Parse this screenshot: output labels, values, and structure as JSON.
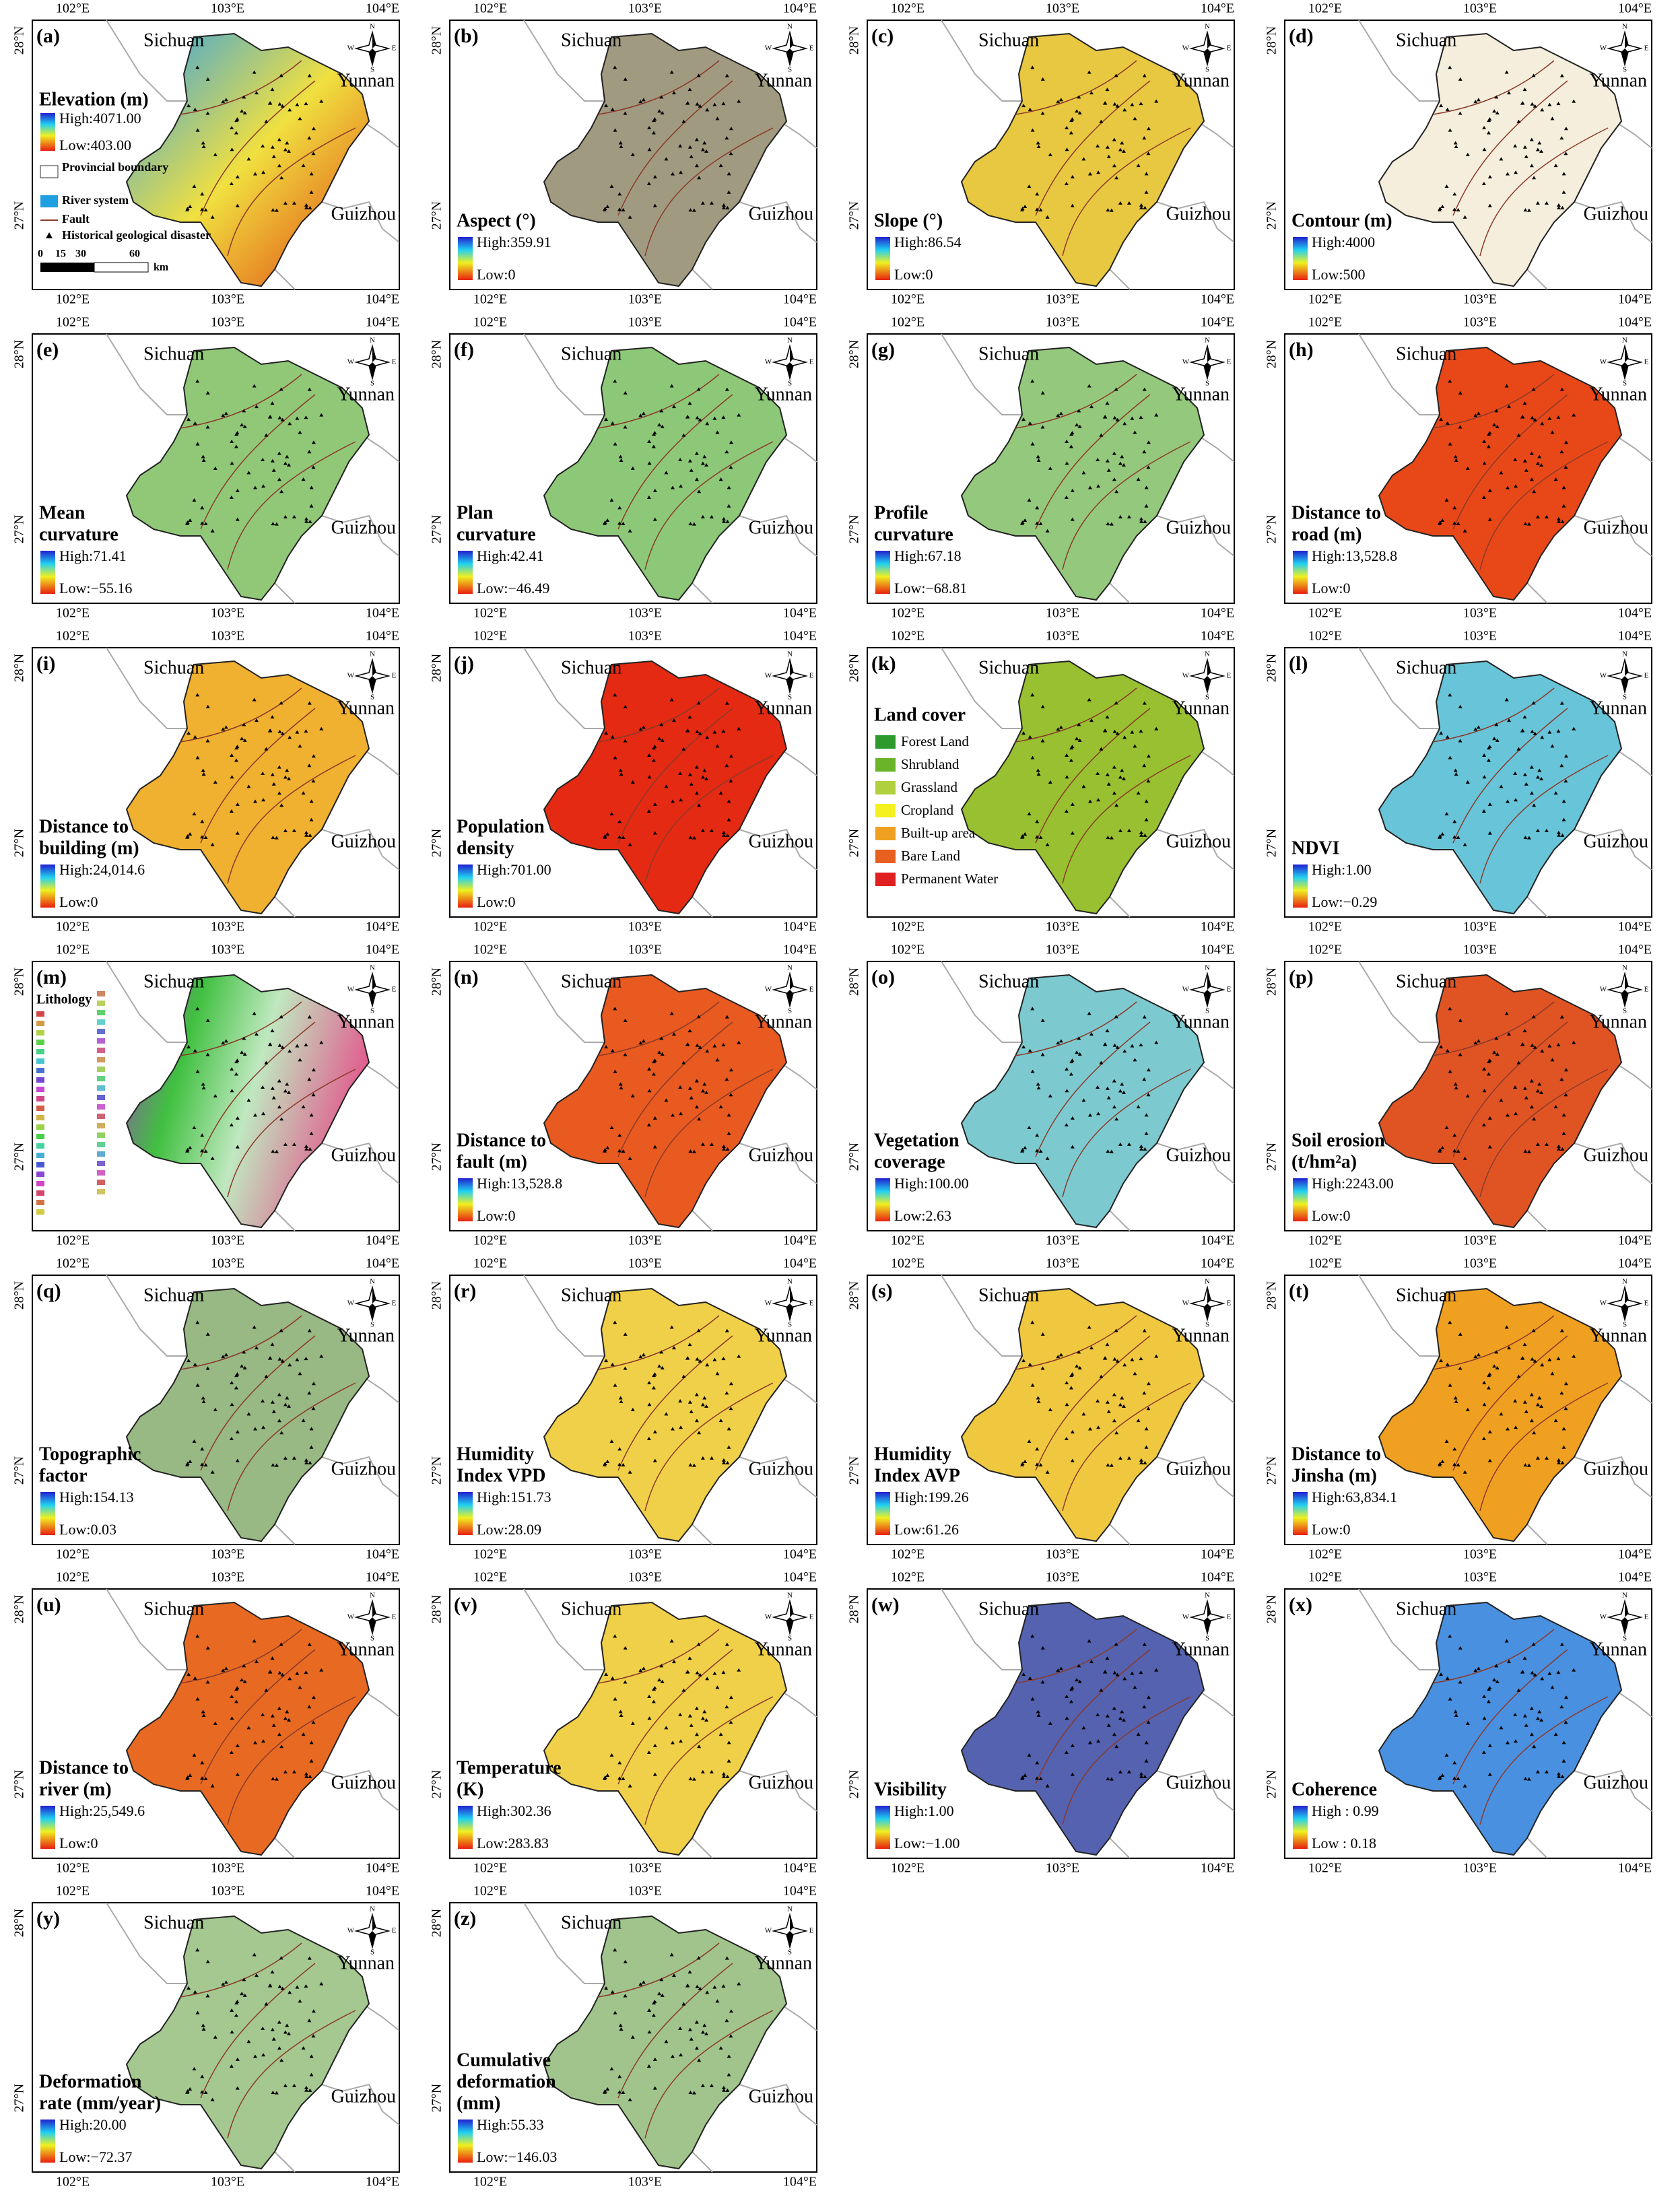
{
  "ticks": {
    "lon": [
      "102°E",
      "103°E",
      "104°E"
    ],
    "lat": [
      "28°N",
      "27°N"
    ]
  },
  "provinces": {
    "north": "Sichuan",
    "east": "Yunnan",
    "south": "Guizhou"
  },
  "compass": [
    "N",
    "E",
    "S",
    "W"
  ],
  "legend_a": {
    "items": [
      "Provincial boundary",
      "River system",
      "Fault",
      "Historical geological disaster"
    ],
    "scale": [
      "0",
      "15",
      "30",
      "60"
    ],
    "unit": "km"
  },
  "legend_k": [
    "Forest Land",
    "Shrubland",
    "Grassland",
    "Cropland",
    "Built-up area",
    "Bare Land",
    "Permanent Water"
  ],
  "panels": [
    {
      "label": "(a)",
      "title": [
        "Elevation (m)"
      ],
      "high": "High:4071.00",
      "low": "Low:403.00"
    },
    {
      "label": "(b)",
      "title": [
        "Aspect (°)"
      ],
      "high": "High:359.91",
      "low": "Low:0"
    },
    {
      "label": "(c)",
      "title": [
        "Slope (°)"
      ],
      "high": "High:86.54",
      "low": "Low:0"
    },
    {
      "label": "(d)",
      "title": [
        "Contour (m)"
      ],
      "high": "High:4000",
      "low": "Low:500"
    },
    {
      "label": "(e)",
      "title": [
        "Mean",
        "curvature"
      ],
      "high": "High:71.41",
      "low": "Low:−55.16"
    },
    {
      "label": "(f)",
      "title": [
        "Plan",
        "curvature"
      ],
      "high": "High:42.41",
      "low": "Low:−46.49"
    },
    {
      "label": "(g)",
      "title": [
        "Profile",
        "curvature"
      ],
      "high": "High:67.18",
      "low": "Low:−68.81"
    },
    {
      "label": "(h)",
      "title": [
        "Distance to",
        "road (m)"
      ],
      "high": "High:13,528.8",
      "low": "Low:0"
    },
    {
      "label": "(i)",
      "title": [
        "Distance to",
        "building (m)"
      ],
      "high": "High:24,014.6",
      "low": "Low:0"
    },
    {
      "label": "(j)",
      "title": [
        "Population",
        "density"
      ],
      "high": "High:701.00",
      "low": "Low:0"
    },
    {
      "label": "(k)",
      "title": [
        "Land cover"
      ]
    },
    {
      "label": "(l)",
      "title": [
        "NDVI"
      ],
      "high": "High:1.00",
      "low": "Low:−0.29"
    },
    {
      "label": "(m)",
      "title": [
        "Lithology"
      ]
    },
    {
      "label": "(n)",
      "title": [
        "Distance to",
        "fault (m)"
      ],
      "high": "High:13,528.8",
      "low": "Low:0"
    },
    {
      "label": "(o)",
      "title": [
        "Vegetation",
        "coverage"
      ],
      "high": "High:100.00",
      "low": "Low:2.63"
    },
    {
      "label": "(p)",
      "title": [
        "Soil erosion",
        "(t/hm²a)"
      ],
      "high": "High:2243.00",
      "low": "Low:0"
    },
    {
      "label": "(q)",
      "title": [
        "Topographic",
        "factor"
      ],
      "high": "High:154.13",
      "low": "Low:0.03"
    },
    {
      "label": "(r)",
      "title": [
        "Humidity",
        "Index VPD"
      ],
      "high": "High:151.73",
      "low": "Low:28.09"
    },
    {
      "label": "(s)",
      "title": [
        "Humidity",
        "Index AVP"
      ],
      "high": "High:199.26",
      "low": "Low:61.26"
    },
    {
      "label": "(t)",
      "title": [
        "Distance to",
        "Jinsha (m)"
      ],
      "high": "High:63,834.1",
      "low": "Low:0"
    },
    {
      "label": "(u)",
      "title": [
        "Distance to",
        "river (m)"
      ],
      "high": "High:25,549.6",
      "low": "Low:0"
    },
    {
      "label": "(v)",
      "title": [
        "Temperature",
        "(K)"
      ],
      "high": "High:302.36",
      "low": "Low:283.83"
    },
    {
      "label": "(w)",
      "title": [
        "Visibility"
      ],
      "high": "High:1.00",
      "low": "Low:−1.00"
    },
    {
      "label": "(x)",
      "title": [
        "Coherence"
      ],
      "high": "High : 0.99",
      "low": "Low : 0.18"
    },
    {
      "label": "(y)",
      "title": [
        "Deformation",
        "rate  (mm/year)"
      ],
      "high": "High:20.00",
      "low": "Low:−72.37"
    },
    {
      "label": "(z)",
      "title": [
        "Cumulative",
        "deformation",
        "(mm)"
      ],
      "high": "High:55.33",
      "low": "Low:−146.03"
    }
  ]
}
